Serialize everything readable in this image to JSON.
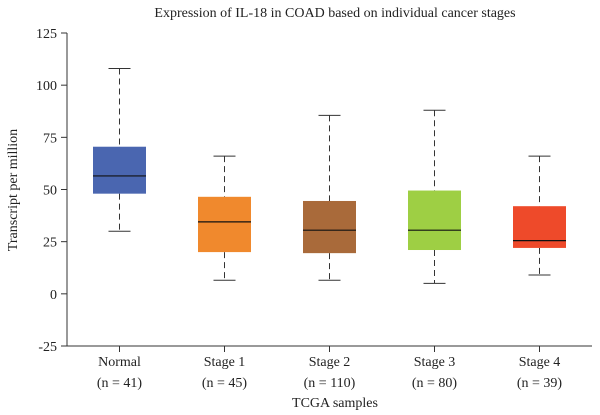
{
  "chart_data": {
    "type": "box",
    "title": "Expression of IL-18 in COAD based on individual cancer stages",
    "xlabel": "TCGA samples",
    "ylabel": "Transcript per million",
    "ylim": [
      -25,
      125
    ],
    "yticks": [
      -25,
      0,
      25,
      50,
      75,
      100,
      125
    ],
    "grid": false,
    "groups": [
      {
        "label": "Normal",
        "n_label": "(n = 41)",
        "color": "#4a66b0",
        "whisker_low": 30,
        "q1": 48,
        "median": 56.5,
        "q3": 70.5,
        "whisker_high": 108
      },
      {
        "label": "Stage 1",
        "n_label": "(n = 45)",
        "color": "#f0892d",
        "whisker_low": 6.5,
        "q1": 20,
        "median": 34.5,
        "q3": 46.5,
        "whisker_high": 66
      },
      {
        "label": "Stage 2",
        "n_label": "(n = 110)",
        "color": "#a96a3a",
        "whisker_low": 6.5,
        "q1": 19.5,
        "median": 30.5,
        "q3": 44.5,
        "whisker_high": 85.5
      },
      {
        "label": "Stage 3",
        "n_label": "(n = 80)",
        "color": "#9ecf44",
        "whisker_low": 5,
        "q1": 21,
        "median": 30.5,
        "q3": 49.5,
        "whisker_high": 88
      },
      {
        "label": "Stage 4",
        "n_label": "(n = 39)",
        "color": "#ee4a2a",
        "whisker_low": 9,
        "q1": 22,
        "median": 25.5,
        "q3": 42,
        "whisker_high": 66
      }
    ]
  }
}
